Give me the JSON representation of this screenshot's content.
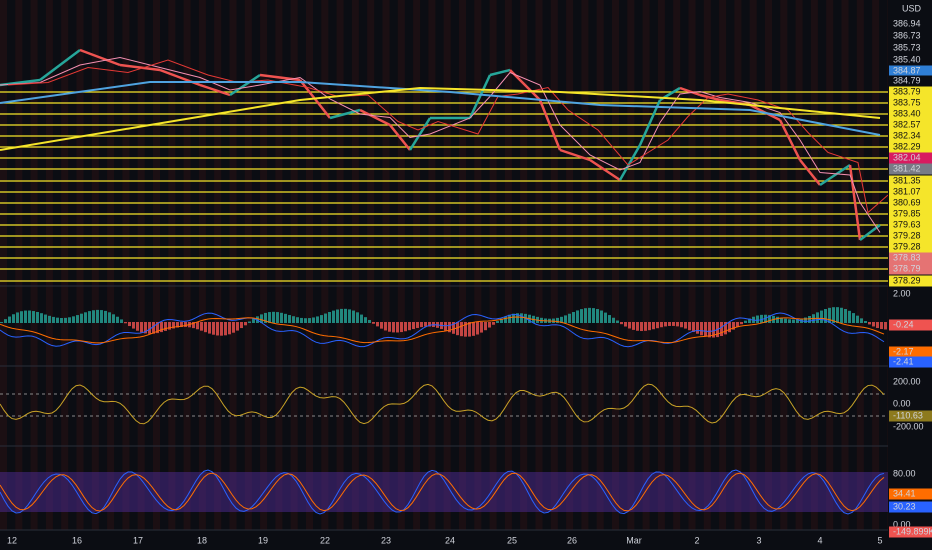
{
  "price_axis": {
    "currency": "USD",
    "labels": [
      "386.94",
      "386.73",
      "385.73",
      "385.40",
      "384.87",
      "384.79",
      "383.79",
      "383.75",
      "383.40",
      "382.57",
      "382.34",
      "382.29",
      "382.04",
      "381.42",
      "381.35",
      "381.07",
      "380.69",
      "379.85",
      "379.63",
      "379.28",
      "379.28",
      "378.83",
      "378.79",
      "378.29"
    ]
  },
  "macd_axis": {
    "labels": [
      "2.00",
      "-0.24",
      "-2.17",
      "-2.41"
    ]
  },
  "cci_axis": {
    "labels": [
      "200.00",
      "0.00",
      "-110.63",
      "-200.00"
    ]
  },
  "stoch_axis": {
    "labels": [
      "80.00",
      "34.41",
      "30.23",
      "0.00",
      "-149.899K"
    ]
  },
  "time_axis": {
    "labels": [
      "12",
      "16",
      "17",
      "18",
      "19",
      "22",
      "23",
      "24",
      "25",
      "26",
      "Mar",
      "2",
      "3",
      "4",
      "5"
    ]
  }
}
